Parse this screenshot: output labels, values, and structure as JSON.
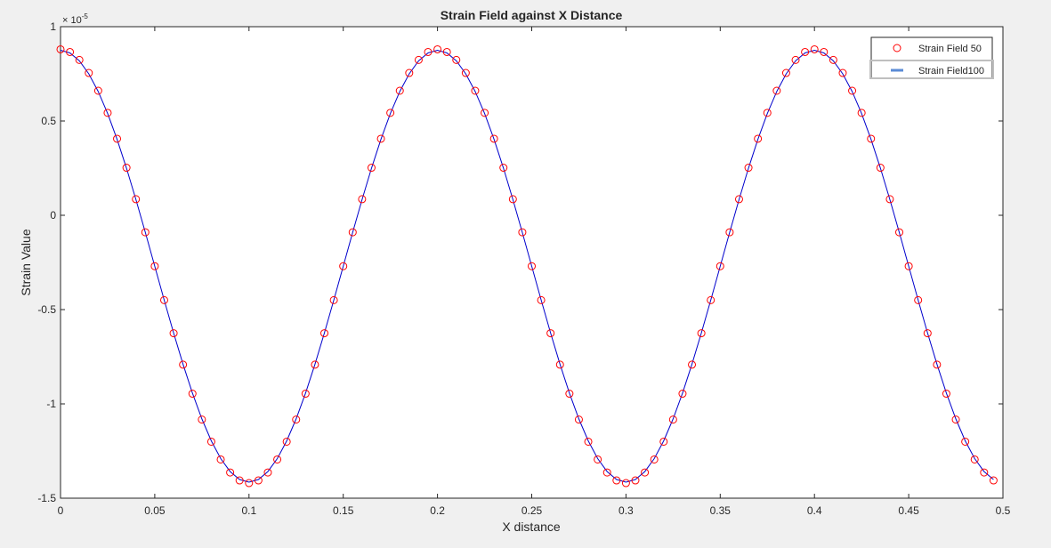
{
  "chart_data": {
    "type": "line",
    "title": "Strain Field against X Distance",
    "xlabel": "X distance",
    "ylabel": "Strain Value",
    "y_multiplier_label": "× 10",
    "y_multiplier_exponent": "-5",
    "xlim": [
      0,
      0.5
    ],
    "ylim": [
      -1.5,
      1
    ],
    "grid": false,
    "legend_position": "top-right",
    "x_ticks": [
      0,
      0.05,
      0.1,
      0.15,
      0.2,
      0.25,
      0.3,
      0.35,
      0.4,
      0.45,
      0.5
    ],
    "x_tick_labels": [
      "0",
      "0.05",
      "0.1",
      "0.15",
      "0.2",
      "0.25",
      "0.3",
      "0.35",
      "0.4",
      "0.45",
      "0.5"
    ],
    "y_ticks": [
      -1.5,
      -1,
      -0.5,
      0,
      0.5,
      1
    ],
    "y_tick_labels": [
      "-1.5",
      "-1",
      "-0.5",
      "0",
      "0.5",
      "1"
    ],
    "series": [
      {
        "name": "Strain Field 50",
        "style": "markers",
        "color": "#ff0000",
        "marker": "circle",
        "amplitude_e5": 1.15,
        "offset_e5": -0.27,
        "period": 0.2,
        "x": [
          0,
          0.005,
          0.01,
          0.015,
          0.02,
          0.025,
          0.03,
          0.035,
          0.04,
          0.045,
          0.05,
          0.055,
          0.06,
          0.065,
          0.07,
          0.075,
          0.08,
          0.085,
          0.09,
          0.095,
          0.1,
          0.105,
          0.11,
          0.115,
          0.12,
          0.125,
          0.13,
          0.135,
          0.14,
          0.145,
          0.15,
          0.155,
          0.16,
          0.165,
          0.17,
          0.175,
          0.18,
          0.185,
          0.19,
          0.195,
          0.2,
          0.205,
          0.21,
          0.215,
          0.22,
          0.225,
          0.23,
          0.235,
          0.24,
          0.245,
          0.25,
          0.255,
          0.26,
          0.265,
          0.27,
          0.275,
          0.28,
          0.285,
          0.29,
          0.295,
          0.3,
          0.305,
          0.31,
          0.315,
          0.32,
          0.325,
          0.33,
          0.335,
          0.34,
          0.345,
          0.35,
          0.355,
          0.36,
          0.365,
          0.37,
          0.375,
          0.38,
          0.385,
          0.39,
          0.395,
          0.4,
          0.405,
          0.41,
          0.415,
          0.42,
          0.425,
          0.43,
          0.435,
          0.44,
          0.445,
          0.45,
          0.455,
          0.46,
          0.465,
          0.47,
          0.475,
          0.48,
          0.485,
          0.49,
          0.495
        ]
      },
      {
        "name": "Strain Field100",
        "style": "line",
        "color": "#0000cc",
        "amplitude_e5": 1.145,
        "offset_e5": -0.27,
        "period": 0.2,
        "x_step": 0.005
      }
    ]
  }
}
